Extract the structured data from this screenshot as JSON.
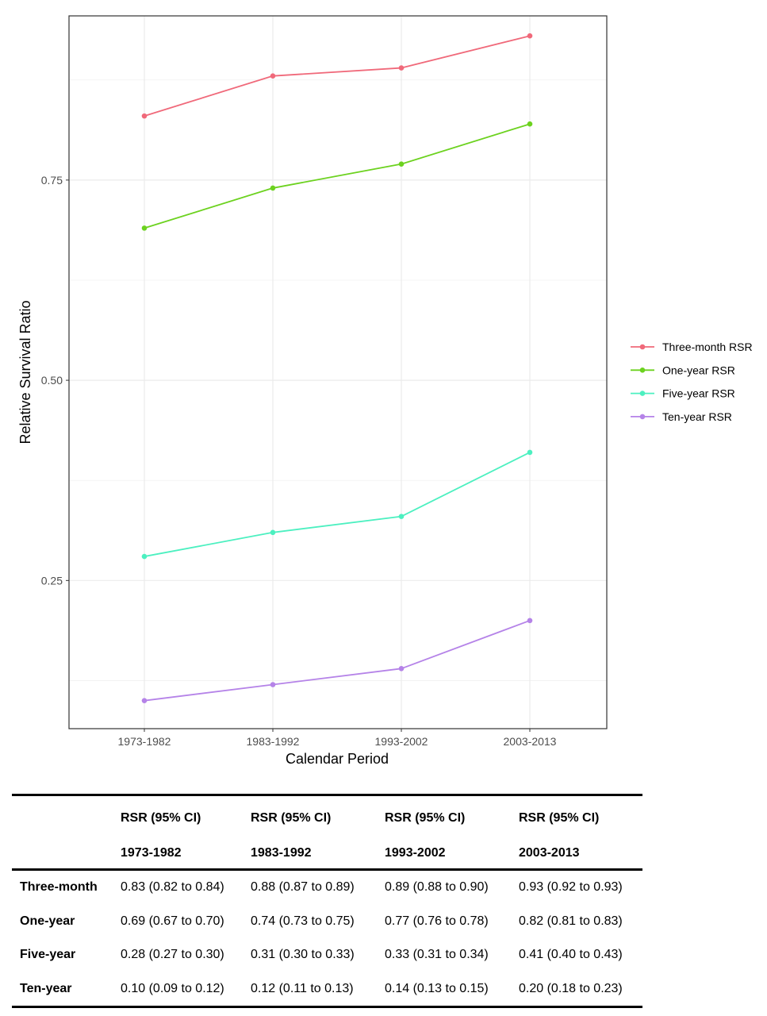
{
  "chart_data": {
    "type": "line",
    "title": "",
    "xlabel": "Calendar Period",
    "ylabel": "Relative Survival Ratio",
    "categories": [
      "1973-1982",
      "1983-1992",
      "1993-2002",
      "2003-2013"
    ],
    "yticks": [
      0.25,
      0.5,
      0.75
    ],
    "ytick_labels": [
      "0.25",
      "0.50",
      "0.75"
    ],
    "ylim": [
      0.065,
      0.955
    ],
    "grid": true,
    "legend_position": "right",
    "series": [
      {
        "name": "Three-month RSR",
        "color": "#F0697A",
        "values": [
          0.83,
          0.88,
          0.89,
          0.93
        ]
      },
      {
        "name": "One-year RSR",
        "color": "#6CD21F",
        "values": [
          0.69,
          0.74,
          0.77,
          0.82
        ]
      },
      {
        "name": "Five-year RSR",
        "color": "#4CF0C0",
        "values": [
          0.28,
          0.31,
          0.33,
          0.41
        ]
      },
      {
        "name": "Ten-year RSR",
        "color": "#B583E8",
        "values": [
          0.1,
          0.12,
          0.14,
          0.2
        ]
      }
    ]
  },
  "table": {
    "header_top": [
      "RSR (95% CI)",
      "RSR (95% CI)",
      "RSR (95% CI)",
      "RSR (95% CI)"
    ],
    "header_periods": [
      "1973-1982",
      "1983-1992",
      "1993-2002",
      "2003-2013"
    ],
    "rows": [
      {
        "label": "Three-month",
        "cells": [
          "0.83 (0.82 to 0.84)",
          "0.88 (0.87 to 0.89)",
          "0.89 (0.88 to 0.90)",
          "0.93 (0.92 to 0.93)"
        ]
      },
      {
        "label": "One-year",
        "cells": [
          "0.69 (0.67 to 0.70)",
          "0.74 (0.73 to 0.75)",
          "0.77 (0.76 to 0.78)",
          "0.82 (0.81 to 0.83)"
        ]
      },
      {
        "label": "Five-year",
        "cells": [
          "0.28 (0.27 to 0.30)",
          "0.31 (0.30 to 0.33)",
          "0.33 (0.31 to 0.34)",
          "0.41 (0.40 to 0.43)"
        ]
      },
      {
        "label": "Ten-year",
        "cells": [
          "0.10 (0.09 to 0.12)",
          "0.12 (0.11 to 0.13)",
          "0.14 (0.13 to 0.15)",
          "0.20 (0.18 to 0.23)"
        ]
      }
    ]
  }
}
